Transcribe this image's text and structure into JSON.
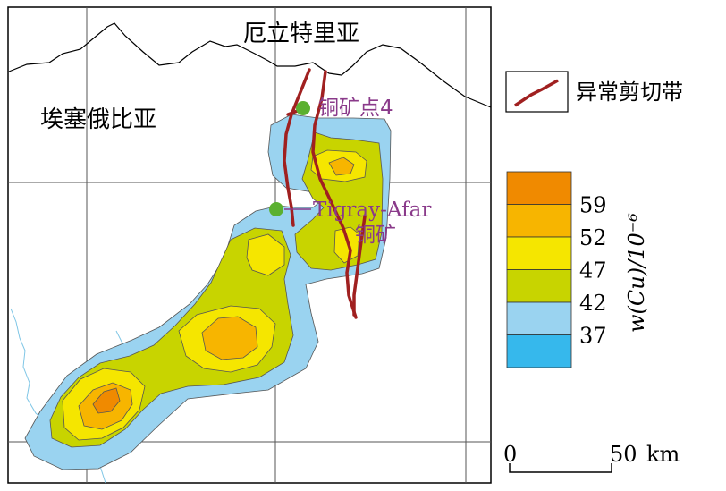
{
  "map": {
    "country_north": "厄立特里亚",
    "country_west": "埃塞俄比亚",
    "site_1_label": "铜矿点4",
    "site_2_label_line1": "Tigray-Afar",
    "site_2_label_line2": "铜矿"
  },
  "legend": {
    "fault_label": "异常剪切带",
    "scale_title": "w(Cu)/10⁻⁶",
    "classes": [
      {
        "label": "59",
        "color": "#f08a00"
      },
      {
        "label": "52",
        "color": "#f7b500"
      },
      {
        "label": "47",
        "color": "#f5e600"
      },
      {
        "label": "42",
        "color": "#c8d400"
      },
      {
        "label": "37",
        "color": "#9ad3f0"
      },
      {
        "label": "",
        "color": "#36b8ec"
      }
    ]
  },
  "scale_bar": {
    "start": "0",
    "end": "50",
    "unit": "km"
  },
  "colors": {
    "fault": "#a02020",
    "site_marker": "#5bb030",
    "site_label": "#8a3a8a",
    "border": "#000000",
    "river": "#7fc6e6",
    "grid": "#555555"
  }
}
